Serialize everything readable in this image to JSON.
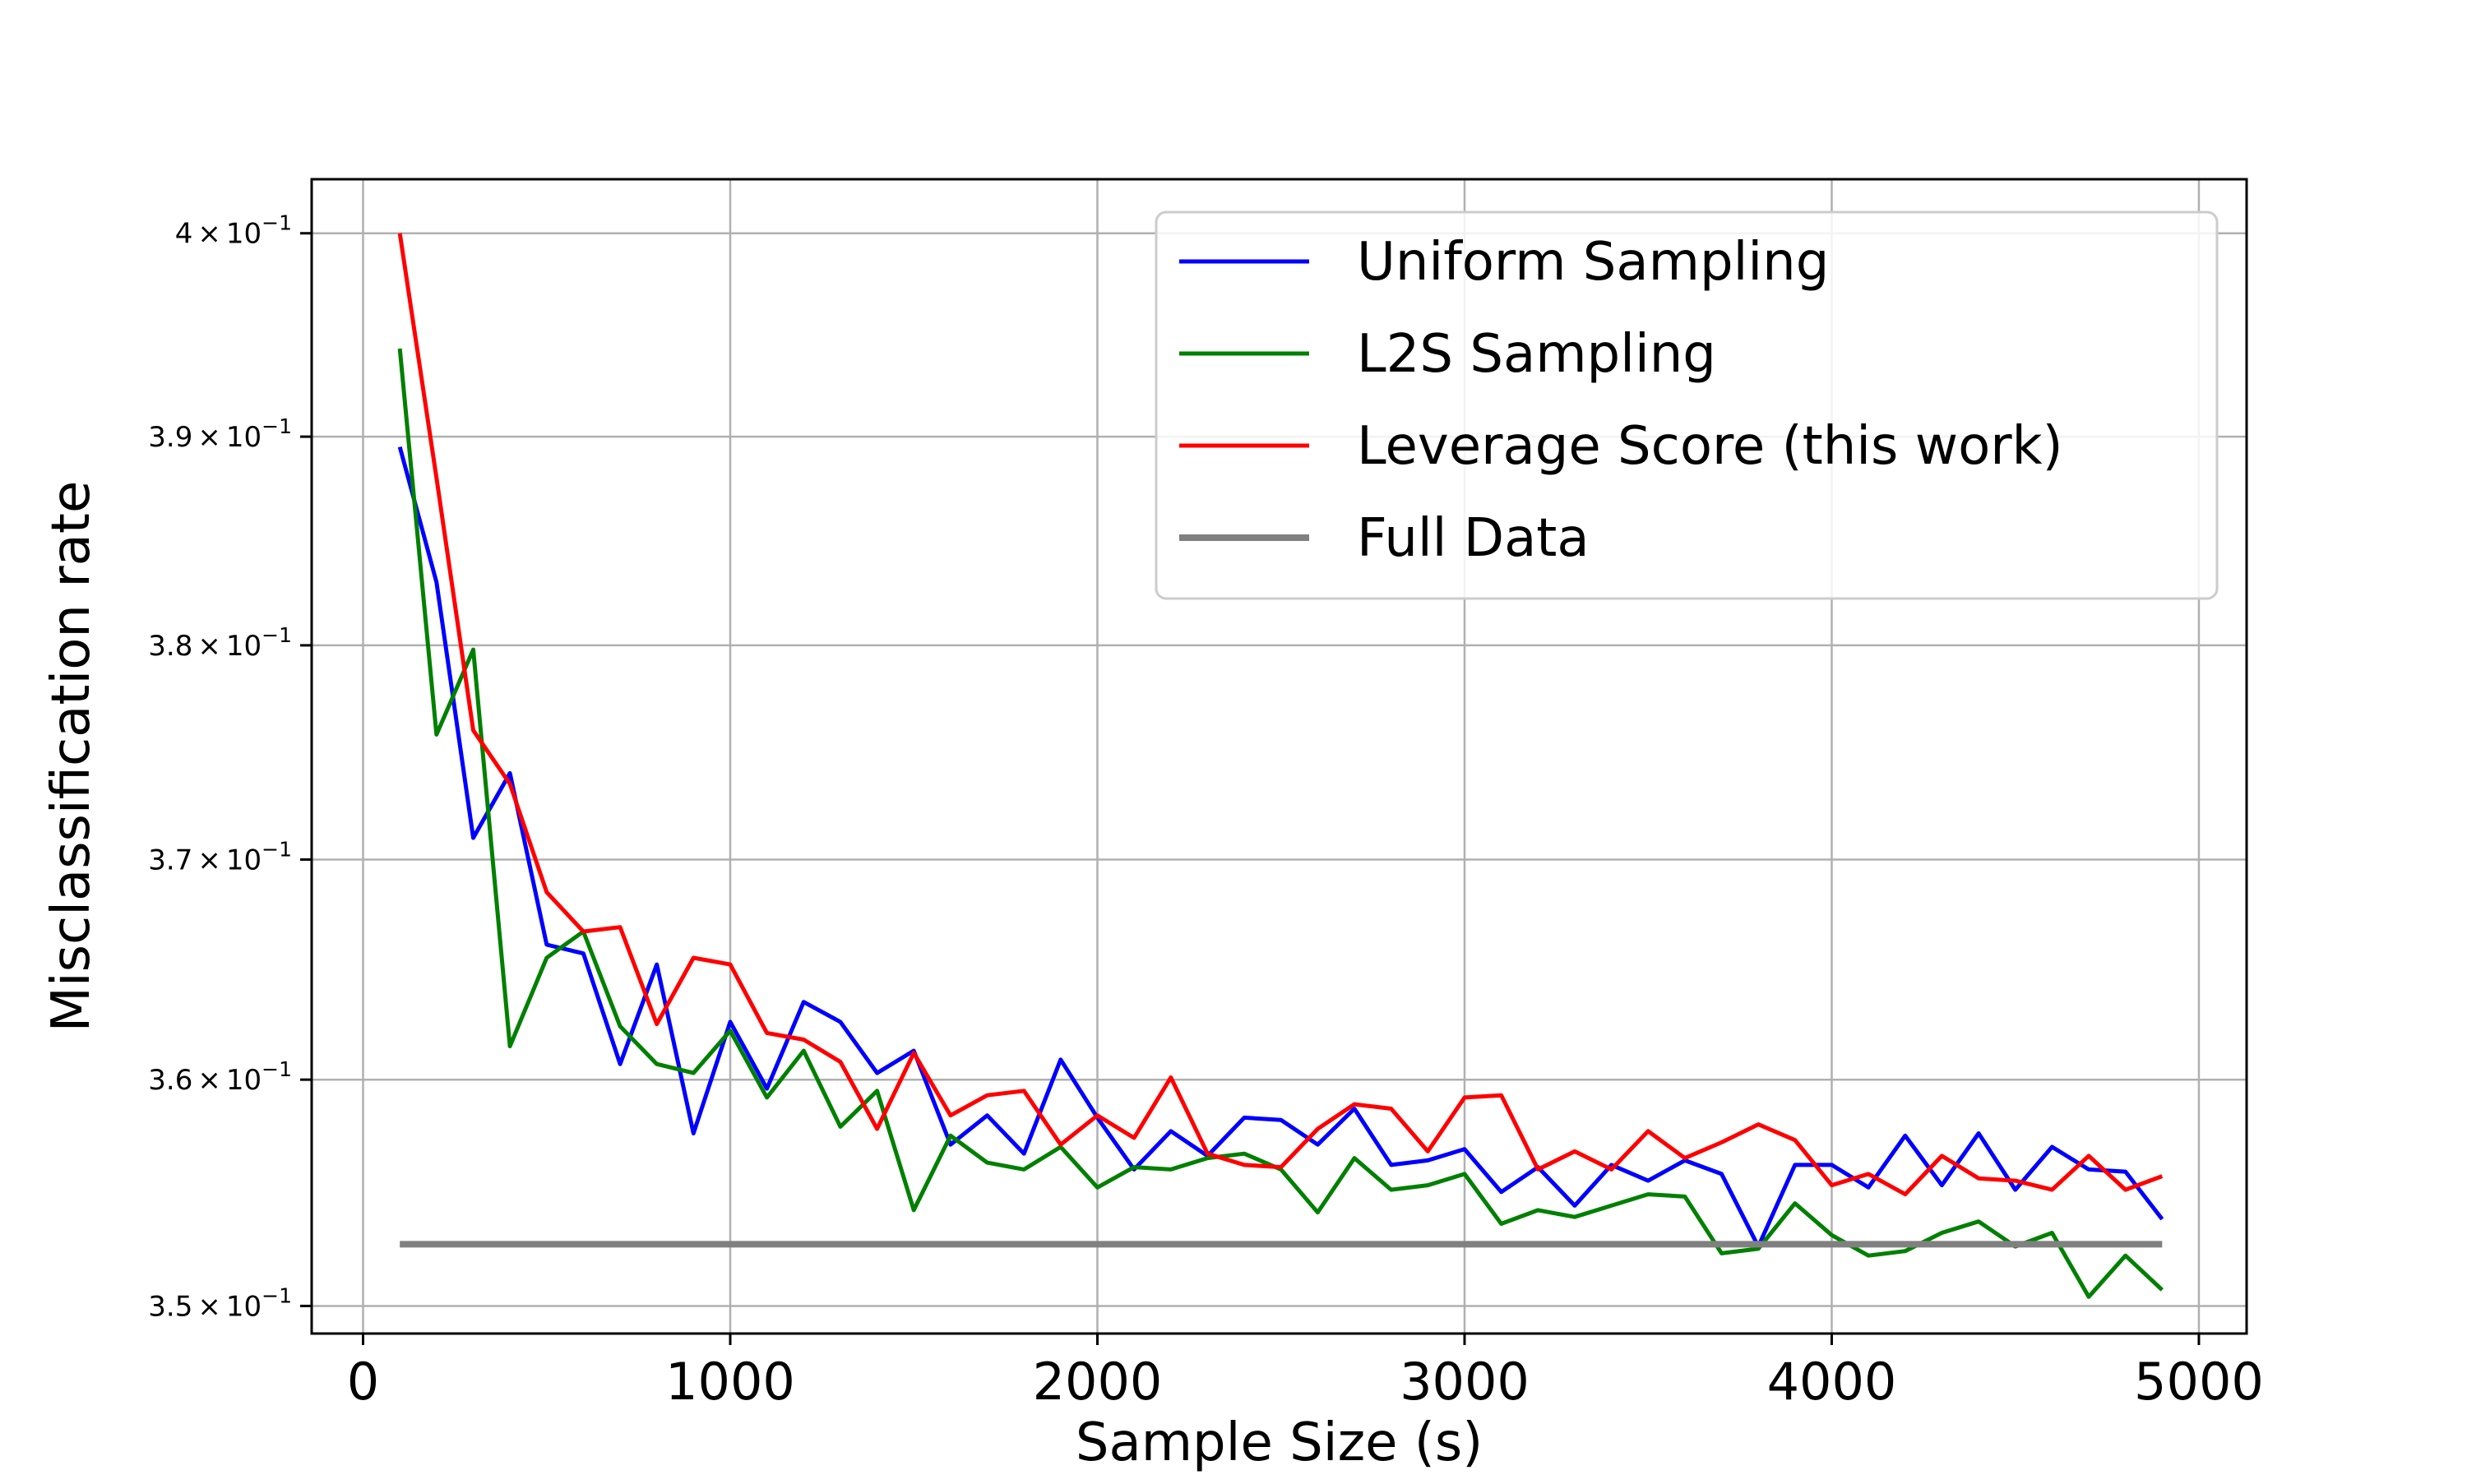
{
  "chart_data": {
    "type": "line",
    "title": "",
    "xlabel": "Sample Size (s)",
    "ylabel": "Misclassification rate",
    "yscale": "log",
    "xlim": [
      -140,
      5130
    ],
    "ylim": [
      0.3488,
      0.4027
    ],
    "grid": true,
    "legend_position": "top-right",
    "x_ticks": [
      0,
      1000,
      2000,
      3000,
      4000,
      5000
    ],
    "x_tick_labels": [
      "0",
      "1000",
      "2000",
      "3000",
      "4000",
      "5000"
    ],
    "y_ticks": [
      {
        "value": 0.35,
        "mantissa": "3.5",
        "times": "×",
        "base": "10",
        "exponent": "−1"
      },
      {
        "value": 0.36,
        "mantissa": "3.6",
        "times": "×",
        "base": "10",
        "exponent": "−1"
      },
      {
        "value": 0.37,
        "mantissa": "3.7",
        "times": "×",
        "base": "10",
        "exponent": "−1"
      },
      {
        "value": 0.38,
        "mantissa": "3.8",
        "times": "×",
        "base": "10",
        "exponent": "−1"
      },
      {
        "value": 0.39,
        "mantissa": "3.9",
        "times": "×",
        "base": "10",
        "exponent": "−1"
      },
      {
        "value": 0.4,
        "mantissa": "4",
        "times": "×",
        "base": "10",
        "exponent": "−1"
      }
    ],
    "x": [
      100,
      200,
      300,
      400,
      500,
      600,
      700,
      800,
      900,
      1000,
      1100,
      1200,
      1300,
      1400,
      1500,
      1600,
      1700,
      1800,
      1900,
      2000,
      2100,
      2200,
      2300,
      2400,
      2500,
      2600,
      2700,
      2800,
      2900,
      3000,
      3100,
      3200,
      3300,
      3400,
      3500,
      3600,
      3700,
      3800,
      3900,
      4000,
      4100,
      4200,
      4300,
      4400,
      4500,
      4600,
      4700,
      4800,
      4900
    ],
    "series": [
      {
        "name": "Uniform Sampling",
        "color": "#0000ff",
        "values": [
          0.3895,
          0.383,
          0.371,
          0.374,
          0.3661,
          0.3657,
          0.3607,
          0.3652,
          0.3576,
          0.3626,
          0.3596,
          0.3635,
          0.3626,
          0.3603,
          0.3613,
          0.3571,
          0.3584,
          0.3567,
          0.3609,
          0.3583,
          0.356,
          0.3577,
          0.3566,
          0.3583,
          0.3582,
          0.3571,
          0.3587,
          0.3562,
          0.3564,
          0.3569,
          0.355,
          0.3561,
          0.3544,
          0.3562,
          0.3555,
          0.3564,
          0.3558,
          0.3526,
          0.3562,
          0.3562,
          0.3552,
          0.3575,
          0.3553,
          0.3576,
          0.3551,
          0.357,
          0.356,
          0.3559,
          0.3538
        ]
      },
      {
        "name": "L2S Sampling",
        "color": "#008000",
        "values": [
          0.3943,
          0.3758,
          0.3798,
          0.3615,
          0.3655,
          0.3667,
          0.3624,
          0.3607,
          0.3603,
          0.3622,
          0.3592,
          0.3613,
          0.3579,
          0.3595,
          0.3542,
          0.3575,
          0.3563,
          0.356,
          0.357,
          0.3552,
          0.3561,
          0.356,
          0.3565,
          0.3567,
          0.356,
          0.3541,
          0.3565,
          0.3551,
          0.3553,
          0.3558,
          0.3536,
          0.3542,
          0.3539,
          0.3544,
          0.3549,
          0.3548,
          0.3523,
          0.3525,
          0.3545,
          0.3531,
          0.3522,
          0.3524,
          0.3532,
          0.3537,
          0.3526,
          0.3532,
          0.3504,
          0.3522,
          0.3507
        ]
      },
      {
        "name": "Leverage Score (this work)",
        "color": "#ff0000",
        "values": [
          0.4,
          0.388,
          0.376,
          0.3735,
          0.3685,
          0.3667,
          0.3669,
          0.3625,
          0.3655,
          0.3652,
          0.3621,
          0.3618,
          0.3608,
          0.3578,
          0.3612,
          0.3584,
          0.3593,
          0.3595,
          0.3571,
          0.3584,
          0.3574,
          0.3601,
          0.3567,
          0.3562,
          0.3561,
          0.3578,
          0.3589,
          0.3587,
          0.3568,
          0.3592,
          0.3593,
          0.356,
          0.3568,
          0.356,
          0.3577,
          0.3565,
          0.3572,
          0.358,
          0.3573,
          0.3553,
          0.3558,
          0.3549,
          0.3566,
          0.3556,
          0.3555,
          0.3551,
          0.3566,
          0.3551,
          0.3557
        ]
      },
      {
        "name": "Full Data",
        "color": "#808080",
        "values": [
          0.3527,
          0.3527,
          0.3527,
          0.3527,
          0.3527,
          0.3527,
          0.3527,
          0.3527,
          0.3527,
          0.3527,
          0.3527,
          0.3527,
          0.3527,
          0.3527,
          0.3527,
          0.3527,
          0.3527,
          0.3527,
          0.3527,
          0.3527,
          0.3527,
          0.3527,
          0.3527,
          0.3527,
          0.3527,
          0.3527,
          0.3527,
          0.3527,
          0.3527,
          0.3527,
          0.3527,
          0.3527,
          0.3527,
          0.3527,
          0.3527,
          0.3527,
          0.3527,
          0.3527,
          0.3527,
          0.3527,
          0.3527,
          0.3527,
          0.3527,
          0.3527,
          0.3527,
          0.3527,
          0.3527,
          0.3527,
          0.3527
        ]
      }
    ]
  }
}
